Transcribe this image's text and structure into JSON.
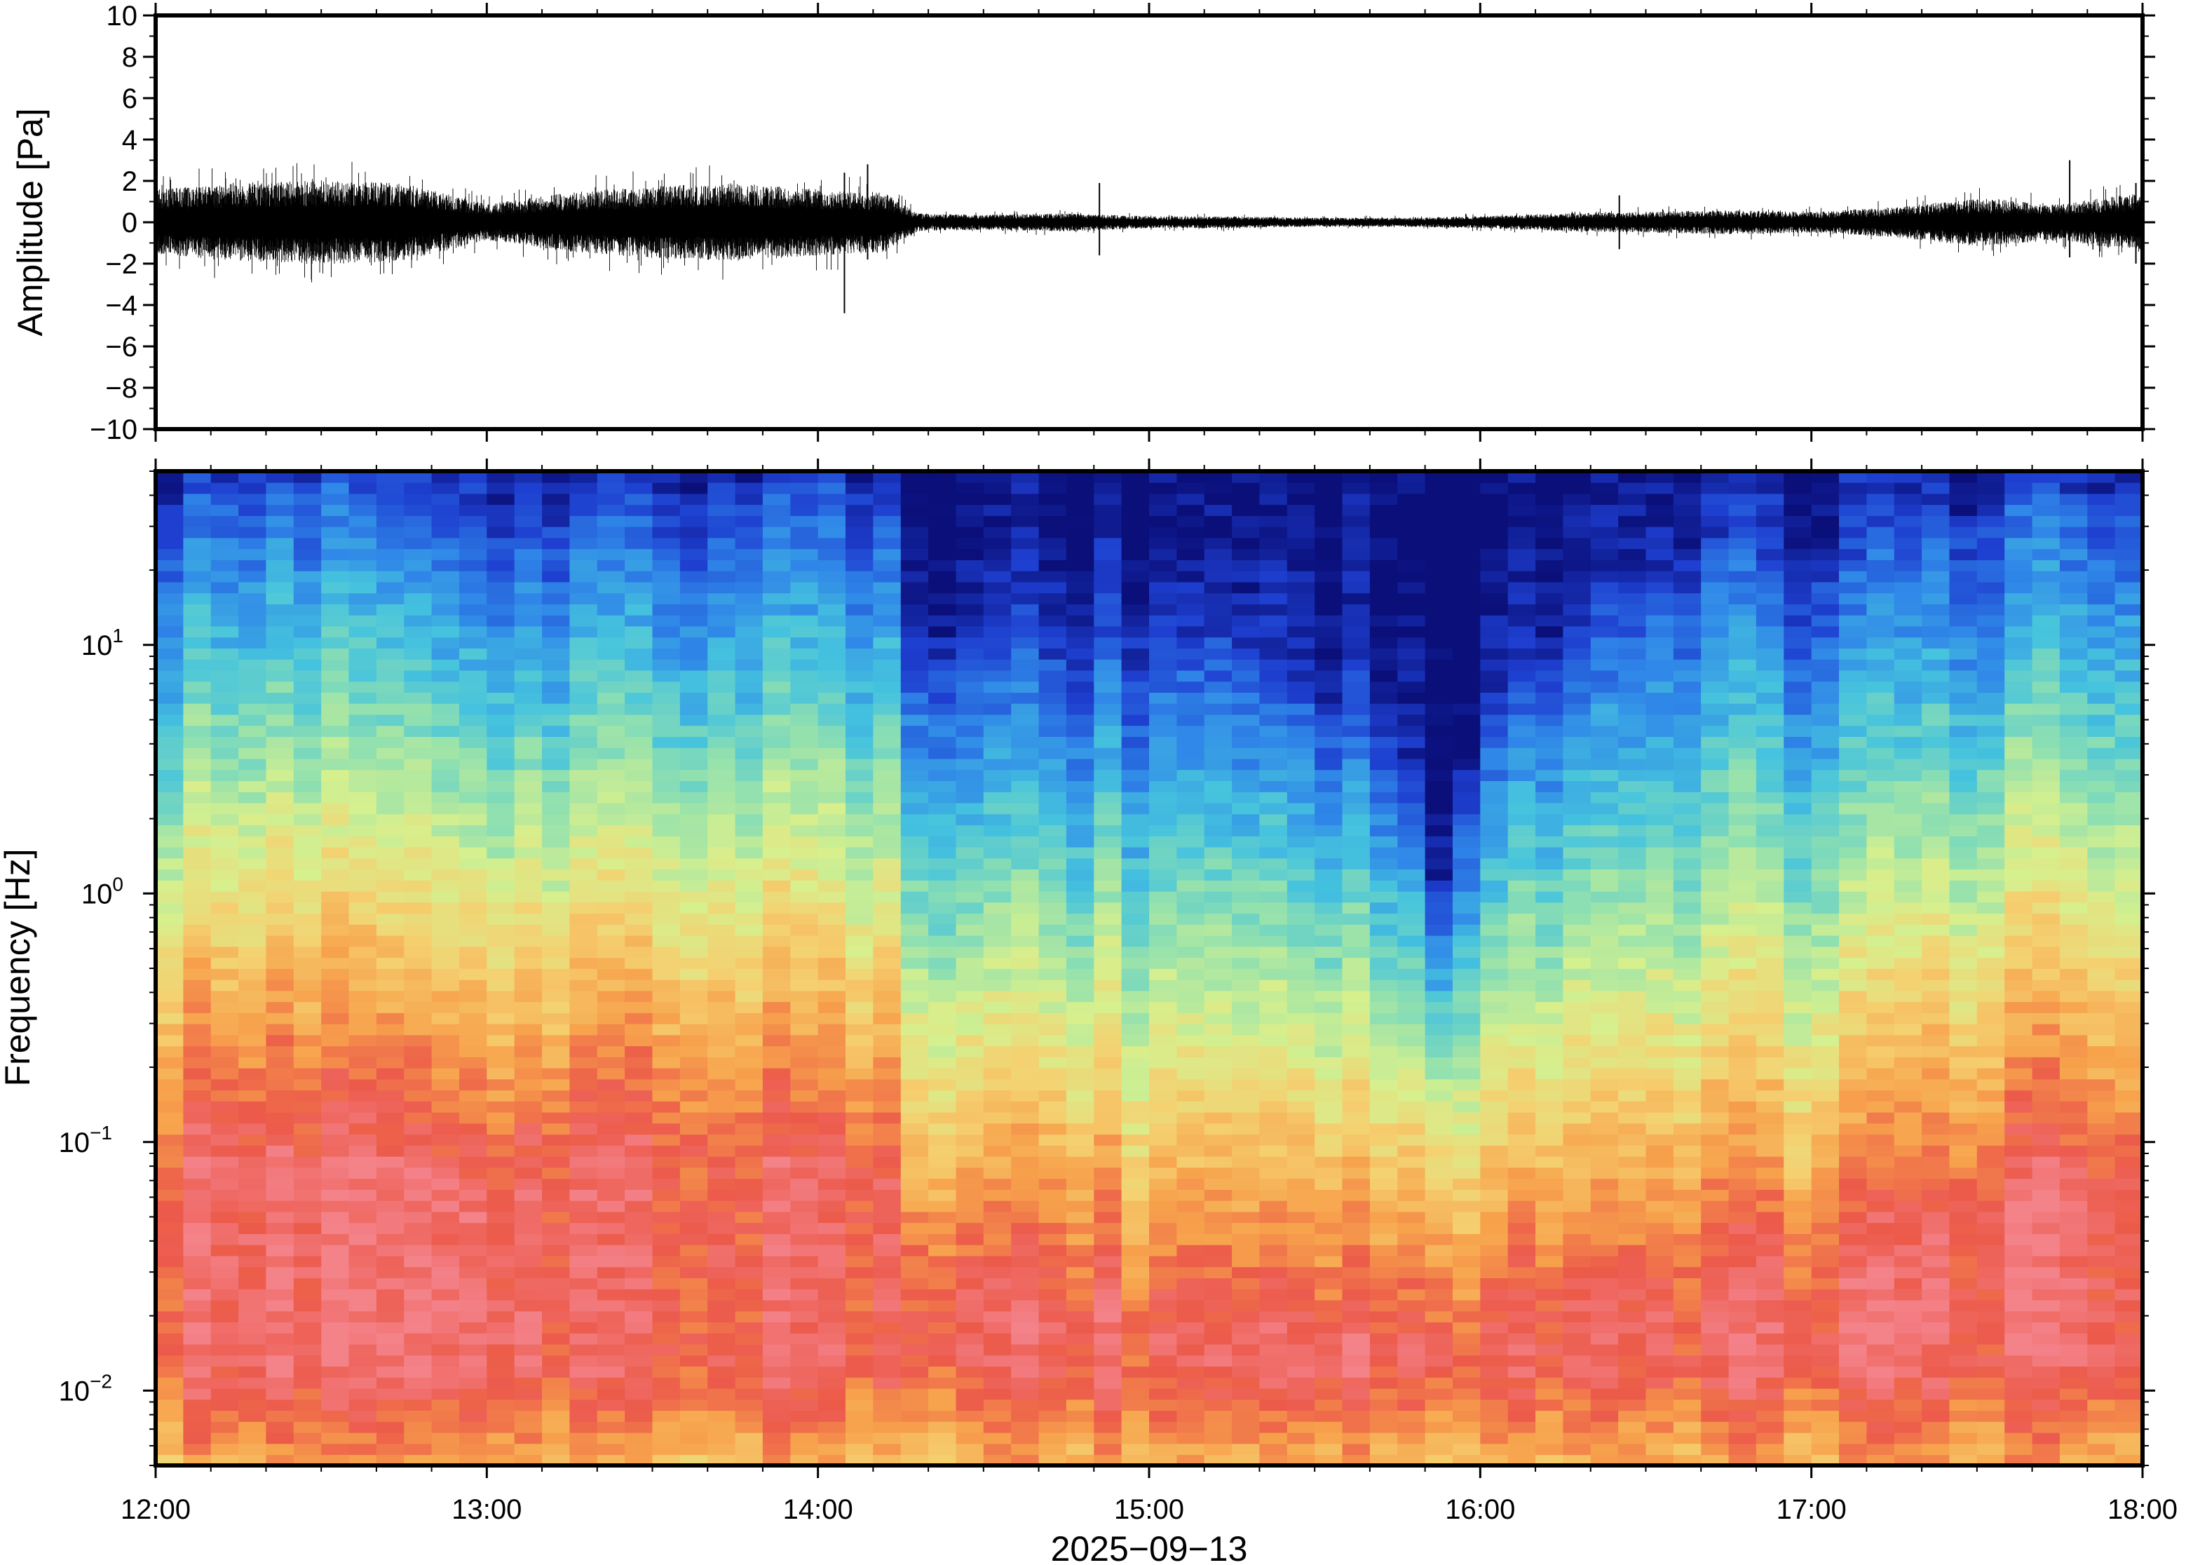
{
  "chart_data": [
    {
      "type": "line",
      "panel": "waveform",
      "ylabel": "Amplitude [Pa]",
      "ylim": [
        -10,
        10
      ],
      "y_ticks": [
        "10",
        "8",
        "6",
        "4",
        "2",
        "0",
        "−2",
        "−4",
        "−6",
        "−8",
        "−10"
      ],
      "y_tick_values": [
        10,
        8,
        6,
        4,
        2,
        0,
        -2,
        -4,
        -6,
        -8,
        -10
      ],
      "x_range_hours": [
        12,
        18
      ],
      "envelope": {
        "hours": [
          12.0,
          12.25,
          12.5,
          12.75,
          13.0,
          13.25,
          13.5,
          13.75,
          14.0,
          14.2,
          14.3,
          14.5,
          14.75,
          15.0,
          15.25,
          15.5,
          15.75,
          16.0,
          16.25,
          16.5,
          16.75,
          17.0,
          17.25,
          17.5,
          17.75,
          18.0
        ],
        "half_amplitude_pa": [
          1.1,
          1.3,
          1.4,
          1.3,
          0.6,
          1.0,
          1.2,
          1.3,
          1.1,
          1.0,
          0.3,
          0.25,
          0.3,
          0.2,
          0.2,
          0.15,
          0.15,
          0.2,
          0.3,
          0.35,
          0.4,
          0.35,
          0.5,
          0.8,
          0.6,
          1.0
        ]
      },
      "spikes": [
        {
          "hour": 14.08,
          "min": -4.4,
          "max": 2.4
        },
        {
          "hour": 14.15,
          "min": -1.8,
          "max": 2.8
        },
        {
          "hour": 14.85,
          "min": -1.6,
          "max": 1.9
        },
        {
          "hour": 16.42,
          "min": -1.3,
          "max": 1.3
        },
        {
          "hour": 17.78,
          "min": -1.7,
          "max": 3.0
        },
        {
          "hour": 17.98,
          "min": -2.0,
          "max": 1.9
        }
      ]
    },
    {
      "type": "heatmap",
      "panel": "spectrogram",
      "ylabel": "Frequency [Hz]",
      "yscale": "log",
      "ylim": [
        0.005,
        50
      ],
      "y_ticks": [
        {
          "value": 10,
          "base": "10",
          "exp": "1"
        },
        {
          "value": 1,
          "base": "10",
          "exp": "0"
        },
        {
          "value": 0.1,
          "base": "10",
          "exp": "−1"
        },
        {
          "value": 0.01,
          "base": "10",
          "exp": "−2"
        }
      ],
      "colormap": [
        "#0a0f7a",
        "#1e3fd0",
        "#2f86e8",
        "#45c3de",
        "#8fe0b0",
        "#d6f08e",
        "#f5d070",
        "#f7a24c",
        "#ec5a4a",
        "#f4828a"
      ],
      "hours": [
        12.0,
        12.25,
        12.5,
        12.75,
        13.0,
        13.25,
        13.5,
        13.75,
        14.0,
        14.2,
        14.3,
        14.5,
        14.75,
        15.0,
        15.25,
        15.5,
        15.75,
        15.9,
        16.0,
        16.25,
        16.5,
        16.75,
        17.0,
        17.25,
        17.5,
        17.75,
        18.0
      ],
      "blue_top_freq_hz": [
        40,
        45,
        45,
        40,
        25,
        35,
        40,
        45,
        45,
        45,
        12,
        10,
        9,
        12,
        10,
        6,
        4,
        0.6,
        5,
        10,
        20,
        25,
        20,
        25,
        35,
        40,
        45
      ],
      "warm_top_freq_hz": [
        0.35,
        0.4,
        0.4,
        0.35,
        0.25,
        0.4,
        0.45,
        0.4,
        0.35,
        0.35,
        0.12,
        0.1,
        0.1,
        0.08,
        0.08,
        0.07,
        0.07,
        0.07,
        0.07,
        0.09,
        0.1,
        0.12,
        0.1,
        0.15,
        0.25,
        0.3,
        0.3
      ]
    }
  ],
  "x_axis": {
    "tick_labels": [
      "12:00",
      "13:00",
      "14:00",
      "15:00",
      "16:00",
      "17:00",
      "18:00"
    ],
    "tick_hours": [
      12,
      13,
      14,
      15,
      16,
      17,
      18
    ],
    "xlabel": "2025−09−13"
  }
}
